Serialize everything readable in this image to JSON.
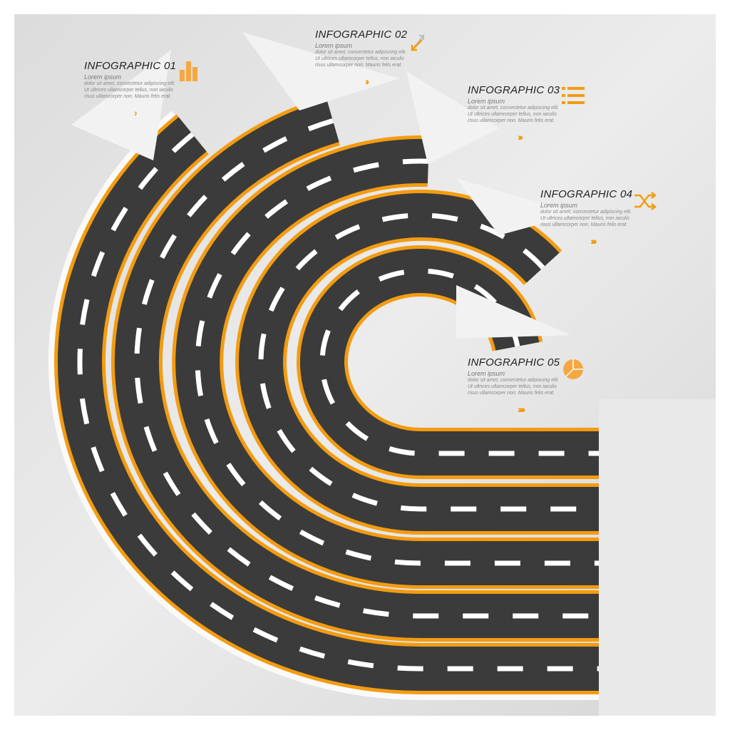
{
  "colors": {
    "road": "#3b3b3b",
    "edge": "#f39c12",
    "dash": "#ffffff",
    "paper": "#f2f2f2"
  },
  "items": [
    {
      "title": "INFOGRAPHIC 01",
      "subtitle": "Lorem ipsum",
      "body": "dolor sit amet, consectetur adipiscing elit. Ut ultrices ullamcorper tellus, non iaculis risus ullamcorper non. Mauris felis erat.",
      "chevrons": "›",
      "icon": "bar-chart-icon"
    },
    {
      "title": "INFOGRAPHIC 02",
      "subtitle": "Lorem ipsum",
      "body": "dolor sit amet, consectetur adipiscing elit. Ut ultrices ullamcorper tellus, non iaculis risus ullamcorper non. Mauris felis erat.",
      "chevrons": "››",
      "icon": "diagonal-arrows-icon"
    },
    {
      "title": "INFOGRAPHIC 03",
      "subtitle": "Lorem ipsum",
      "body": "dolor sit amet, consectetur adipiscing elit. Ut ultrices ullamcorper tellus, non iaculis risus ullamcorper non. Mauris felis erat.",
      "chevrons": "›››",
      "icon": "list-icon"
    },
    {
      "title": "INFOGRAPHIC 04",
      "subtitle": "Lorem ipsum",
      "body": "dolor sit amet, consectetur adipiscing elit. Ut ultrices ullamcorper tellus, non iaculis risus ullamcorper non. Mauris felis erat.",
      "chevrons": "››››",
      "icon": "shuffle-icon"
    },
    {
      "title": "INFOGRAPHIC 05",
      "subtitle": "Lorem ipsum",
      "body": "dolor sit amet, consectetur adipiscing elit. Ut ultrices ullamcorper tellus, non iaculis risus ullamcorper non. Mauris felis erat.",
      "chevrons": "›››››",
      "icon": "pie-chart-icon"
    }
  ]
}
